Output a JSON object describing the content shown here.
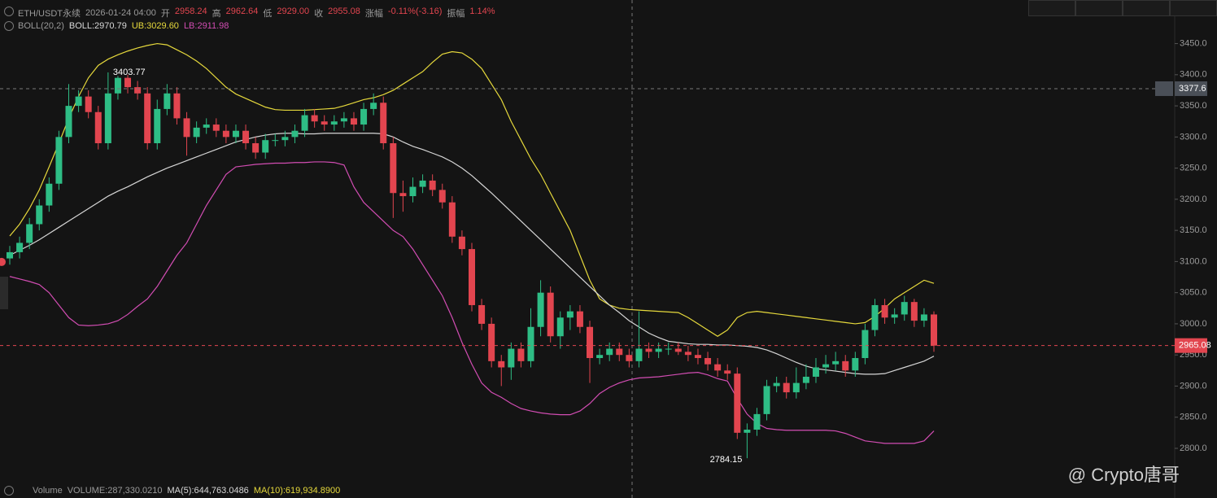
{
  "header": {
    "symbol": "ETH/USDT永续",
    "time": "2026-01-24 04:00",
    "stats": [
      {
        "label": "开",
        "value": "2958.24"
      },
      {
        "label": "高",
        "value": "2962.64"
      },
      {
        "label": "低",
        "value": "2929.00"
      },
      {
        "label": "收",
        "value": "2955.08"
      },
      {
        "label": "涨幅",
        "value": "-0.11%(-3.16)"
      },
      {
        "label": "振幅",
        "value": "1.14%"
      }
    ]
  },
  "indicator": {
    "name": "BOLL(20,2)",
    "values": [
      "BOLL:2970.79",
      "UB:3029.60",
      "LB:2911.98"
    ]
  },
  "volume": {
    "name": "Volume",
    "values": [
      "VOLUME:287,330.0210",
      "MA(5):644,763.0486",
      "MA(10):619,934.8900"
    ]
  },
  "watermark": "@ Crypto唐哥",
  "chart_data": {
    "type": "candlestick",
    "up_color": "#2ebd85",
    "down_color": "#e2454f",
    "ylim": [
      2749,
      3520
    ],
    "yticks": [
      {
        "value": 2800,
        "label": "2800.0"
      },
      {
        "value": 2850,
        "label": "2850.0"
      },
      {
        "value": 2900,
        "label": "2900.0"
      },
      {
        "value": 2950,
        "label": "2950.0"
      },
      {
        "value": 3000,
        "label": "3000.0"
      },
      {
        "value": 3050,
        "label": "3050.0"
      },
      {
        "value": 3100,
        "label": "3100.0"
      },
      {
        "value": 3150,
        "label": "3150.0"
      },
      {
        "value": 3200,
        "label": "3200.0"
      },
      {
        "value": 3250,
        "label": "3250.0"
      },
      {
        "value": 3300,
        "label": "3300.0"
      },
      {
        "value": 3350,
        "label": "3350.0"
      },
      {
        "value": 3400,
        "label": "3400.0"
      },
      {
        "value": 3450,
        "label": "3450.0"
      }
    ],
    "open": [
      3105,
      3115,
      3130,
      3160,
      3190,
      3225,
      3300,
      3350,
      3365,
      3340,
      3290,
      3370,
      3395,
      3380,
      3370,
      3290,
      3345,
      3370,
      3330,
      3300,
      3315,
      3320,
      3310,
      3300,
      3310,
      3290,
      3275,
      3295,
      3295,
      3300,
      3310,
      3335,
      3325,
      3320,
      3325,
      3330,
      3320,
      3345,
      3355,
      3290,
      3210,
      3205,
      3220,
      3230,
      3215,
      3195,
      3140,
      3120,
      3030,
      3000,
      2940,
      2930,
      2960,
      2940,
      2995,
      3050,
      2980,
      3010,
      3020,
      2995,
      2945,
      2950,
      2960,
      2950,
      2940,
      2960,
      2955,
      2960,
      2960,
      2955,
      2950,
      2945,
      2935,
      2925,
      2920,
      2825,
      2830,
      2855,
      2900,
      2905,
      2890,
      2905,
      2915,
      2930,
      2935,
      2940,
      2925,
      2945,
      2990,
      3030,
      3010,
      3015,
      3035,
      3005,
      3015
    ],
    "high": [
      3125,
      3140,
      3170,
      3200,
      3235,
      3310,
      3385,
      3375,
      3375,
      3350,
      3403.77,
      3398,
      3400,
      3390,
      3380,
      3360,
      3385,
      3380,
      3340,
      3325,
      3330,
      3330,
      3320,
      3320,
      3320,
      3300,
      3305,
      3305,
      3310,
      3320,
      3345,
      3345,
      3335,
      3335,
      3340,
      3340,
      3355,
      3370,
      3365,
      3300,
      3230,
      3235,
      3240,
      3240,
      3225,
      3205,
      3150,
      3130,
      3040,
      3010,
      2950,
      2970,
      2970,
      3025,
      3070,
      3060,
      3020,
      3030,
      3030,
      3005,
      2960,
      2970,
      2970,
      2960,
      3020,
      2970,
      2970,
      2970,
      2970,
      2965,
      2960,
      2955,
      2945,
      2935,
      2930,
      2840,
      2865,
      2910,
      2915,
      2915,
      2930,
      2935,
      2945,
      2950,
      2955,
      2950,
      2955,
      3000,
      3040,
      3040,
      3025,
      3045,
      3040,
      3025,
      3020
    ],
    "low": [
      3095,
      3105,
      3120,
      3150,
      3180,
      3215,
      3290,
      3340,
      3330,
      3280,
      3280,
      3360,
      3370,
      3360,
      3280,
      3280,
      3335,
      3320,
      3270,
      3290,
      3305,
      3300,
      3290,
      3290,
      3280,
      3265,
      3265,
      3285,
      3285,
      3290,
      3300,
      3315,
      3310,
      3310,
      3315,
      3310,
      3310,
      3335,
      3280,
      3170,
      3180,
      3195,
      3210,
      3205,
      3185,
      3130,
      3110,
      3020,
      2990,
      2930,
      2900,
      2910,
      2930,
      2930,
      2980,
      2970,
      2960,
      2990,
      2985,
      2905,
      2935,
      2940,
      2940,
      2930,
      2930,
      2945,
      2945,
      2950,
      2950,
      2940,
      2935,
      2925,
      2915,
      2910,
      2815,
      2784.15,
      2820,
      2845,
      2890,
      2880,
      2880,
      2895,
      2905,
      2920,
      2925,
      2915,
      2915,
      2935,
      2980,
      3000,
      3000,
      3005,
      2995,
      2995,
      2955
    ],
    "close": [
      3115,
      3130,
      3160,
      3190,
      3225,
      3300,
      3350,
      3365,
      3340,
      3290,
      3370,
      3395,
      3380,
      3370,
      3290,
      3345,
      3370,
      3330,
      3300,
      3315,
      3320,
      3310,
      3300,
      3310,
      3290,
      3275,
      3295,
      3295,
      3300,
      3310,
      3335,
      3325,
      3320,
      3325,
      3330,
      3320,
      3345,
      3355,
      3290,
      3210,
      3205,
      3220,
      3230,
      3215,
      3195,
      3140,
      3120,
      3030,
      3000,
      2940,
      2930,
      2960,
      2940,
      2995,
      3050,
      2980,
      3010,
      3020,
      2995,
      2945,
      2950,
      2960,
      2950,
      2940,
      2960,
      2955,
      2960,
      2960,
      2955,
      2950,
      2945,
      2935,
      2925,
      2920,
      2825,
      2830,
      2855,
      2900,
      2905,
      2890,
      2905,
      2915,
      2930,
      2935,
      2940,
      2925,
      2945,
      2990,
      3030,
      3010,
      3015,
      3035,
      3005,
      3015,
      2965
    ],
    "bands": [
      {
        "color": "#e6d93c",
        "values": [
          3141,
          3160,
          3185,
          3215,
          3252,
          3290,
          3330,
          3365,
          3395,
          3415,
          3425,
          3432,
          3438,
          3443,
          3447,
          3450,
          3448,
          3440,
          3432,
          3422,
          3410,
          3395,
          3380,
          3369,
          3362,
          3355,
          3348,
          3344,
          3343,
          3343,
          3343,
          3344,
          3345,
          3346,
          3350,
          3355,
          3360,
          3363,
          3368,
          3375,
          3385,
          3395,
          3405,
          3420,
          3433,
          3437,
          3435,
          3425,
          3410,
          3385,
          3360,
          3325,
          3295,
          3265,
          3240,
          3210,
          3180,
          3150,
          3110,
          3070,
          3040,
          3030,
          3025,
          3023,
          3022,
          3021,
          3020,
          3019,
          3018,
          3010,
          3000,
          2990,
          2980,
          2990,
          3010,
          3018,
          3020,
          3018,
          3016,
          3014,
          3012,
          3010,
          3008,
          3006,
          3004,
          3002,
          3000,
          3002,
          3012,
          3025,
          3040,
          3050,
          3060,
          3070,
          3065
        ]
      },
      {
        "color": "#d6d6d6",
        "values": [
          3110,
          3118,
          3126,
          3135,
          3145,
          3155,
          3165,
          3175,
          3185,
          3195,
          3205,
          3213,
          3220,
          3228,
          3236,
          3243,
          3250,
          3256,
          3262,
          3268,
          3274,
          3280,
          3286,
          3292,
          3296,
          3300,
          3303,
          3305,
          3306,
          3306,
          3305,
          3305,
          3306,
          3306,
          3306,
          3306,
          3306,
          3306,
          3305,
          3300,
          3292,
          3285,
          3280,
          3274,
          3268,
          3260,
          3250,
          3238,
          3224,
          3210,
          3195,
          3180,
          3165,
          3150,
          3135,
          3120,
          3105,
          3090,
          3075,
          3060,
          3045,
          3030,
          3018,
          3005,
          2995,
          2985,
          2978,
          2972,
          2970,
          2968,
          2967,
          2967,
          2966,
          2966,
          2965,
          2964,
          2962,
          2958,
          2952,
          2945,
          2938,
          2932,
          2928,
          2926,
          2924,
          2922,
          2920,
          2919,
          2919,
          2920,
          2925,
          2930,
          2935,
          2940,
          2948
        ]
      },
      {
        "color": "#d24db3",
        "values": [
          3076,
          3072,
          3068,
          3063,
          3050,
          3030,
          3010,
          2998,
          2997,
          2998,
          3000,
          3005,
          3015,
          3028,
          3040,
          3060,
          3085,
          3110,
          3130,
          3160,
          3190,
          3215,
          3240,
          3252,
          3254,
          3256,
          3257,
          3258,
          3258,
          3259,
          3259,
          3260,
          3260,
          3259,
          3255,
          3220,
          3195,
          3180,
          3165,
          3150,
          3140,
          3120,
          3095,
          3070,
          3045,
          3010,
          2970,
          2935,
          2905,
          2890,
          2882,
          2872,
          2864,
          2860,
          2857,
          2855,
          2854,
          2854,
          2860,
          2872,
          2888,
          2898,
          2905,
          2910,
          2913,
          2914,
          2915,
          2917,
          2919,
          2921,
          2922,
          2918,
          2912,
          2908,
          2880,
          2855,
          2840,
          2832,
          2830,
          2829,
          2829,
          2829,
          2829,
          2829,
          2828,
          2824,
          2818,
          2812,
          2810,
          2808,
          2808,
          2808,
          2808,
          2812,
          2828
        ]
      }
    ],
    "annotations": {
      "high": "3403.77",
      "low": "2784.15"
    },
    "crosshair": {
      "value": 3377.6,
      "label": "3377.6"
    },
    "last_price": {
      "value": 2965.08,
      "label": "2965.08"
    }
  }
}
